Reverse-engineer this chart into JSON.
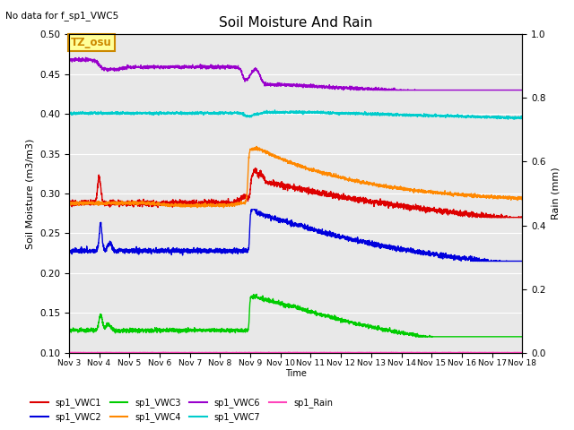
{
  "title": "Soil Moisture And Rain",
  "subtitle": "No data for f_sp1_VWC5",
  "xlabel": "Time",
  "ylabel_left": "Soil Moisture (m3/m3)",
  "ylabel_right": "Rain (mm)",
  "ylim_left": [
    0.1,
    0.5
  ],
  "ylim_right": [
    0.0,
    1.0
  ],
  "background_color": "#e8e8e8",
  "annotation_text": "TZ_osu",
  "annotation_color": "#cc8800",
  "annotation_bg": "#ffff99",
  "xtick_labels": [
    "Nov 3",
    "Nov 4",
    "Nov 5",
    "Nov 6",
    "Nov 7",
    "Nov 8",
    "Nov 9",
    "Nov 10",
    "Nov 11",
    "Nov 12",
    "Nov 13",
    "Nov 14",
    "Nov 15",
    "Nov 16",
    "Nov 17",
    "Nov 18"
  ],
  "series": {
    "sp1_VWC1": {
      "color": "#dd0000",
      "lw": 1.0
    },
    "sp1_VWC2": {
      "color": "#0000dd",
      "lw": 1.0
    },
    "sp1_VWC3": {
      "color": "#00cc00",
      "lw": 1.0
    },
    "sp1_VWC4": {
      "color": "#ff8800",
      "lw": 1.0
    },
    "sp1_VWC6": {
      "color": "#9900cc",
      "lw": 1.0
    },
    "sp1_VWC7": {
      "color": "#00cccc",
      "lw": 1.0
    },
    "sp1_Rain": {
      "color": "#ff44bb",
      "lw": 1.0
    }
  }
}
